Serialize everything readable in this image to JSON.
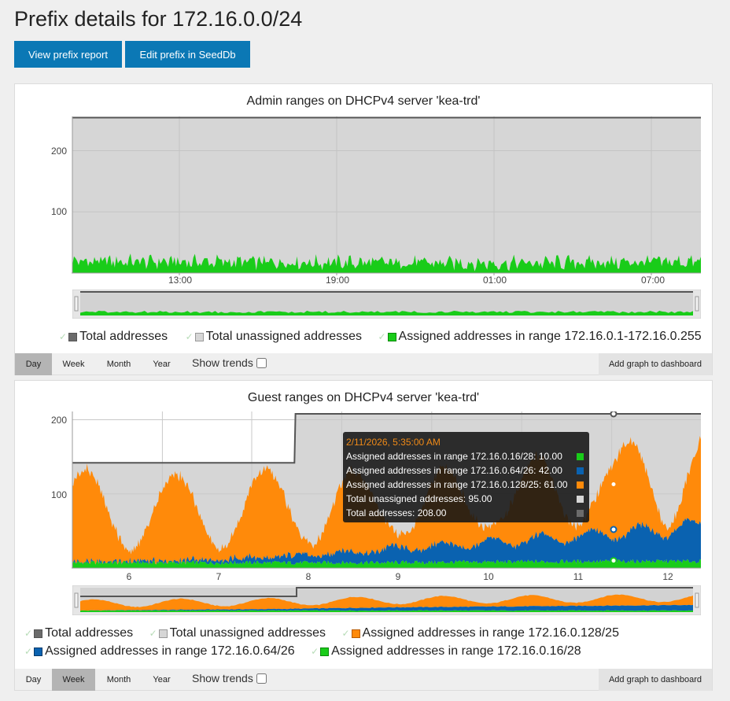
{
  "page": {
    "title": "Prefix details for 172.16.0.0/24",
    "buttons": {
      "report": "View prefix report",
      "edit": "Edit prefix in SeedDb"
    }
  },
  "colors": {
    "primary_button": "#0b78b5",
    "total": "#6b6b6b",
    "unassigned": "#d6d6d6",
    "green": "#19cc19",
    "orange": "#ff8a0a",
    "blue": "#0a62b0"
  },
  "chart_data": [
    {
      "type": "area",
      "title": "Admin ranges on DHCPv4 server 'kea-trd'",
      "x": [
        "13:00",
        "19:00",
        "01:00",
        "07:00"
      ],
      "yticks": [
        "200",
        "100"
      ],
      "ylim": [
        0,
        256
      ],
      "series": [
        {
          "name": "Total addresses",
          "values": [
            254,
            254,
            254,
            254
          ]
        },
        {
          "name": "Total unassigned addresses",
          "values": [
            230,
            232,
            234,
            231
          ]
        },
        {
          "name": "Assigned addresses in range 172.16.0.1-172.16.0.255",
          "values": [
            24,
            22,
            20,
            23
          ]
        }
      ],
      "legend": [
        "Total addresses",
        "Total unassigned addresses",
        "Assigned addresses in range 172.16.0.1-172.16.0.255"
      ],
      "range_buttons": [
        "Day",
        "Week",
        "Month",
        "Year"
      ],
      "active_range": "Day",
      "show_trends": "Show trends",
      "add_dashboard": "Add graph to dashboard"
    },
    {
      "type": "area",
      "title": "Guest ranges on DHCPv4 server 'kea-trd'",
      "x": [
        "6",
        "7",
        "8",
        "9",
        "10",
        "11",
        "12"
      ],
      "yticks": [
        "200",
        "100"
      ],
      "ylim": [
        0,
        208
      ],
      "series": [
        {
          "name": "Total addresses",
          "values": [
            142,
            142,
            208,
            208,
            208,
            208,
            208
          ]
        },
        {
          "name": "Assigned addresses in range 172.16.0.128/25",
          "values": [
            130,
            120,
            125,
            110,
            105,
            120,
            145
          ]
        },
        {
          "name": "Assigned addresses in range 172.16.0.64/26",
          "values": [
            2,
            3,
            10,
            22,
            32,
            44,
            58
          ]
        },
        {
          "name": "Assigned addresses in range 172.16.0.16/28",
          "values": [
            8,
            8,
            8,
            8,
            9,
            10,
            10
          ]
        }
      ],
      "legend": [
        "Total addresses",
        "Total unassigned addresses",
        "Assigned addresses in range 172.16.0.128/25",
        "Assigned addresses in range 172.16.0.64/26",
        "Assigned addresses in range 172.16.0.16/28"
      ],
      "tooltip": {
        "title": "2/11/2026, 5:35:00 AM",
        "rows": [
          "Assigned addresses in range 172.16.0.16/28: 10.00",
          "Assigned addresses in range 172.16.0.64/26: 42.00",
          "Assigned addresses in range 172.16.0.128/25: 61.00",
          "Total unassigned addresses: 95.00",
          "Total addresses: 208.00"
        ]
      },
      "range_buttons": [
        "Day",
        "Week",
        "Month",
        "Year"
      ],
      "active_range": "Week",
      "show_trends": "Show trends",
      "add_dashboard": "Add graph to dashboard"
    }
  ]
}
